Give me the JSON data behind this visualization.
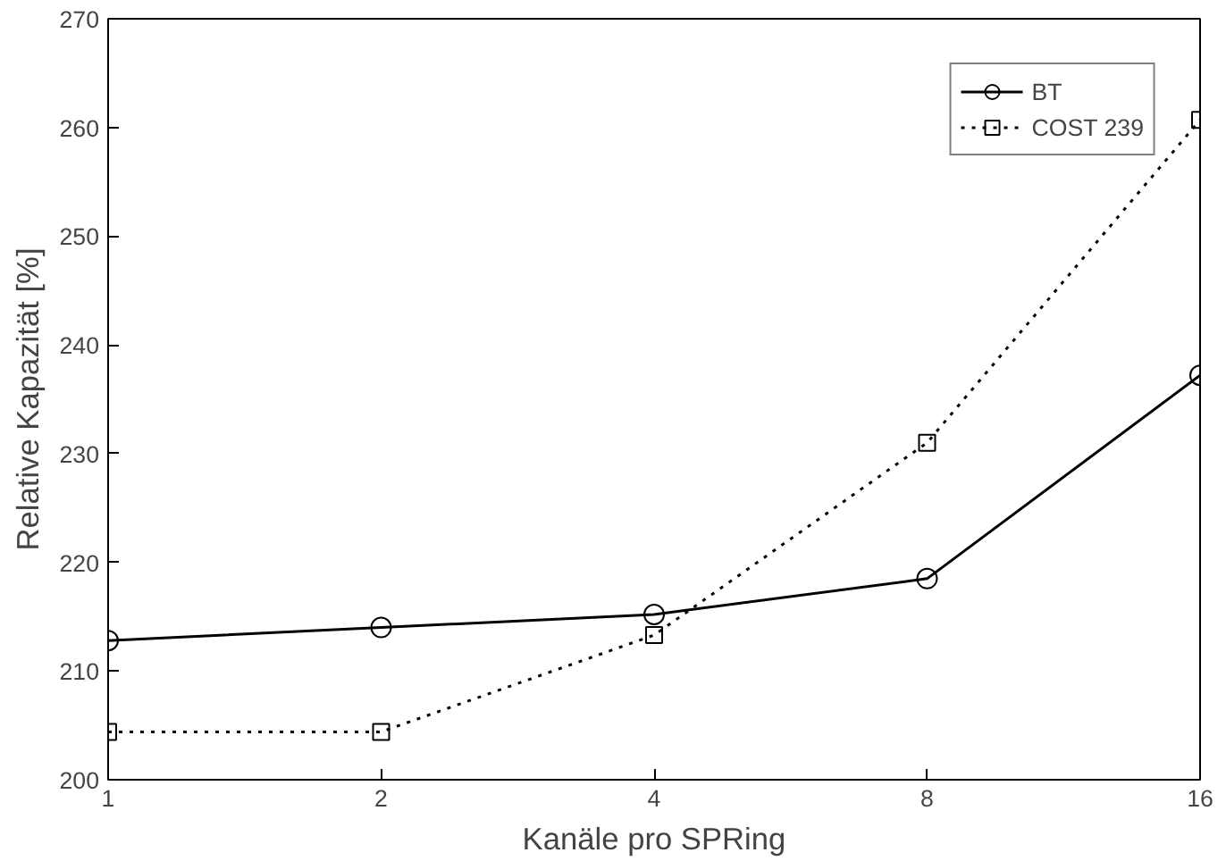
{
  "chart_data": {
    "type": "line",
    "xlabel": "Kanäle pro SPRing",
    "ylabel": "Relative Kapazität [%]",
    "x": [
      1,
      2,
      4,
      8,
      16
    ],
    "xlim": [
      1,
      16
    ],
    "xticks": [
      1,
      2,
      4,
      8,
      16
    ],
    "log": "x",
    "ylim": [
      200,
      270
    ],
    "yticks": [
      200,
      210,
      220,
      230,
      240,
      250,
      260,
      270
    ],
    "grid": false,
    "legend": "top right",
    "series": [
      {
        "name": "BT",
        "color": "#000000",
        "marker": "circle",
        "line_style": "solid",
        "values": [
          212.8,
          214.0,
          215.2,
          218.5,
          237.2
        ]
      },
      {
        "name": "COST 239",
        "color": "#000000",
        "marker": "square",
        "line_style": "dotted",
        "values": [
          204.4,
          204.4,
          213.3,
          231.0,
          260.7
        ]
      }
    ]
  }
}
